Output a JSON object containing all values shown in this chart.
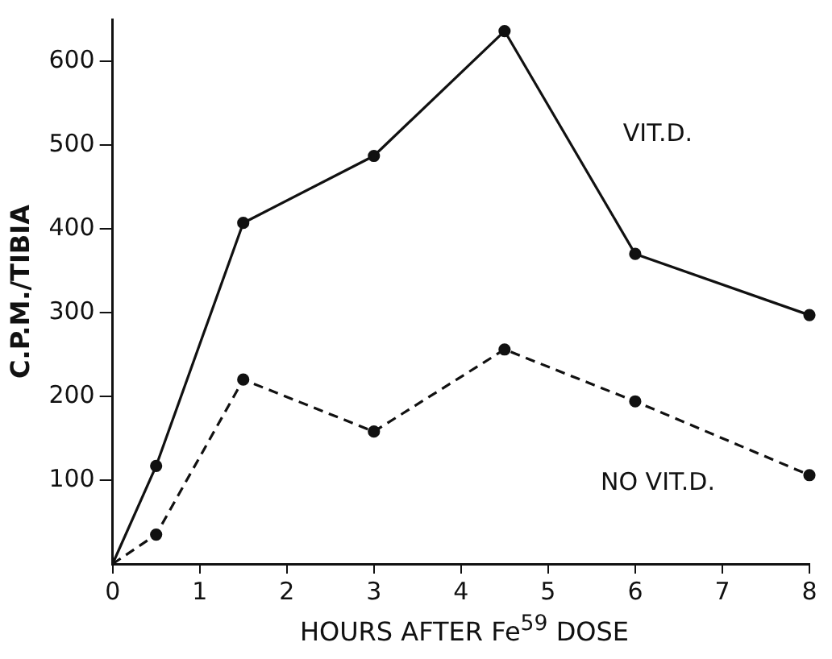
{
  "chart_data": {
    "type": "line",
    "xlabel": "HOURS AFTER Fe$^{59}$ DOSE",
    "ylabel": "C.P.M./TIBIA",
    "xlim": [
      0,
      8
    ],
    "xticks": [
      0,
      1,
      2,
      3,
      4,
      5,
      6,
      7,
      8
    ],
    "ylim": [
      0,
      650
    ],
    "yticks": [
      100,
      200,
      300,
      400,
      500,
      600
    ],
    "grid": false,
    "legend": false,
    "marker": "circle",
    "series": [
      {
        "name": "VIT.D.",
        "color": "#111111",
        "line_style": "solid",
        "x": [
          0,
          0.5,
          1.5,
          3,
          4.5,
          6,
          8
        ],
        "values": [
          0,
          117,
          407,
          487,
          636,
          370,
          297
        ]
      },
      {
        "name": "NO VIT.D.",
        "color": "#111111",
        "line_style": "dashed",
        "x": [
          0,
          0.5,
          1.5,
          3,
          4.5,
          6,
          8
        ],
        "values": [
          0,
          35,
          220,
          158,
          256,
          194,
          106
        ]
      }
    ]
  }
}
